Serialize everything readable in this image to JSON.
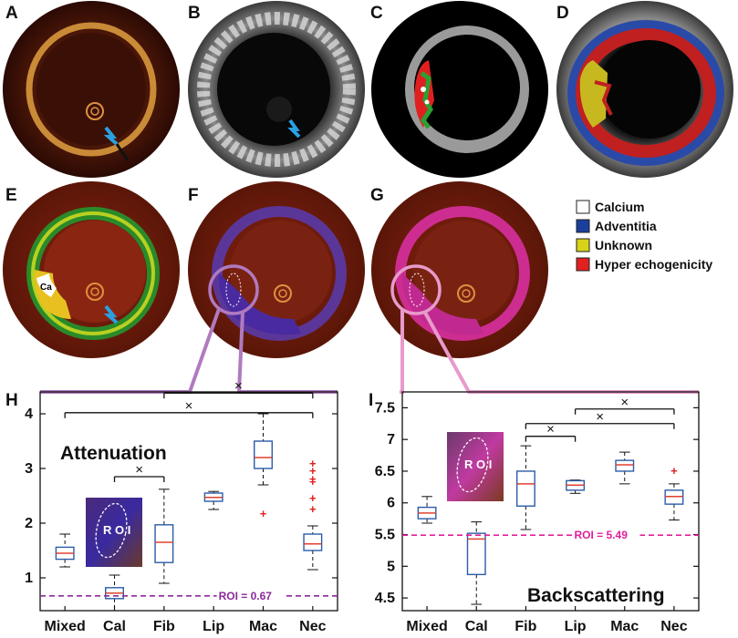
{
  "panel_labels": [
    "A",
    "B",
    "C",
    "D",
    "E",
    "F",
    "G",
    "H",
    "I"
  ],
  "legend": [
    {
      "label": "Calcium",
      "color": "#ffffff"
    },
    {
      "label": "Adventitia",
      "color": "#1a3f9c"
    },
    {
      "label": "Unknown",
      "color": "#d8d21a"
    },
    {
      "label": "Hyper echogenicity",
      "color": "#e12020"
    }
  ],
  "calcium_tag": "Ca",
  "roi_image_label": "R O I",
  "colors": {
    "box": "#2a5ca8",
    "median": "#e04030",
    "outlier": "#e02020",
    "roi_h": "#8a2a9a",
    "roi_i": "#e0209a",
    "connector_h": "#b07ac0",
    "connector_i": "#e89acb"
  },
  "chart_data": [
    {
      "type": "box",
      "panel": "H",
      "title": "Attenuation",
      "categories": [
        "Mixed",
        "Cal",
        "Fib",
        "Lip",
        "Mac",
        "Nec"
      ],
      "ylim": [
        0.4,
        4.4
      ],
      "yticks": [
        "1",
        "2",
        "3",
        "4"
      ],
      "boxes": [
        {
          "min": 1.2,
          "q1": 1.34,
          "median": 1.45,
          "q3": 1.56,
          "max": 1.8,
          "outliers": []
        },
        {
          "min": 0.4,
          "q1": 0.62,
          "median": 0.72,
          "q3": 0.82,
          "max": 1.05,
          "outliers": []
        },
        {
          "min": 0.9,
          "q1": 1.28,
          "median": 1.65,
          "q3": 1.97,
          "max": 2.62,
          "outliers": []
        },
        {
          "min": 2.25,
          "q1": 2.4,
          "median": 2.47,
          "q3": 2.55,
          "max": 2.58,
          "outliers": []
        },
        {
          "min": 2.7,
          "q1": 3.0,
          "median": 3.2,
          "q3": 3.5,
          "max": 4.0,
          "outliers": [
            2.17
          ]
        },
        {
          "min": 1.15,
          "q1": 1.5,
          "median": 1.62,
          "q3": 1.8,
          "max": 1.95,
          "outliers": [
            2.25,
            2.45,
            2.75,
            2.8,
            2.95,
            3.08
          ]
        }
      ],
      "roi_line": {
        "value": 0.67,
        "label": "ROI = 0.67"
      },
      "brackets": [
        {
          "from": 1,
          "to": 2,
          "level": 2.85,
          "mark": "×"
        },
        {
          "from": 0,
          "to": 5,
          "level": 4.02,
          "mark": "×"
        },
        {
          "from": 2,
          "to": 5,
          "level": 4.38,
          "mark": "×"
        }
      ]
    },
    {
      "type": "box",
      "panel": "I",
      "title": "Backscattering",
      "categories": [
        "Mixed",
        "Cal",
        "Fib",
        "Lip",
        "Mac",
        "Nec"
      ],
      "ylim": [
        4.3,
        7.75
      ],
      "yticks": [
        "4.5",
        "5",
        "5.5",
        "6",
        "6.5",
        "7",
        "7.5"
      ],
      "boxes": [
        {
          "min": 5.68,
          "q1": 5.75,
          "median": 5.84,
          "q3": 5.93,
          "max": 6.1,
          "outliers": []
        },
        {
          "min": 4.4,
          "q1": 4.87,
          "median": 5.43,
          "q3": 5.52,
          "max": 5.7,
          "outliers": []
        },
        {
          "min": 5.58,
          "q1": 5.95,
          "median": 6.3,
          "q3": 6.5,
          "max": 6.9,
          "outliers": []
        },
        {
          "min": 6.15,
          "q1": 6.2,
          "median": 6.28,
          "q3": 6.35,
          "max": 6.36,
          "outliers": []
        },
        {
          "min": 6.3,
          "q1": 6.5,
          "median": 6.6,
          "q3": 6.67,
          "max": 6.8,
          "outliers": []
        },
        {
          "min": 5.73,
          "q1": 5.98,
          "median": 6.1,
          "q3": 6.2,
          "max": 6.3,
          "outliers": [
            6.5
          ]
        },
        {
          "_note": ""
        }
      ],
      "roi_line": {
        "value": 5.49,
        "label": "ROI = 5.49"
      },
      "brackets": [
        {
          "from": 2,
          "to": 3,
          "level": 7.05,
          "mark": "×"
        },
        {
          "from": 2,
          "to": 5,
          "level": 7.25,
          "mark": "×"
        },
        {
          "from": 3,
          "to": 5,
          "level": 7.48,
          "mark": "×"
        }
      ]
    }
  ]
}
